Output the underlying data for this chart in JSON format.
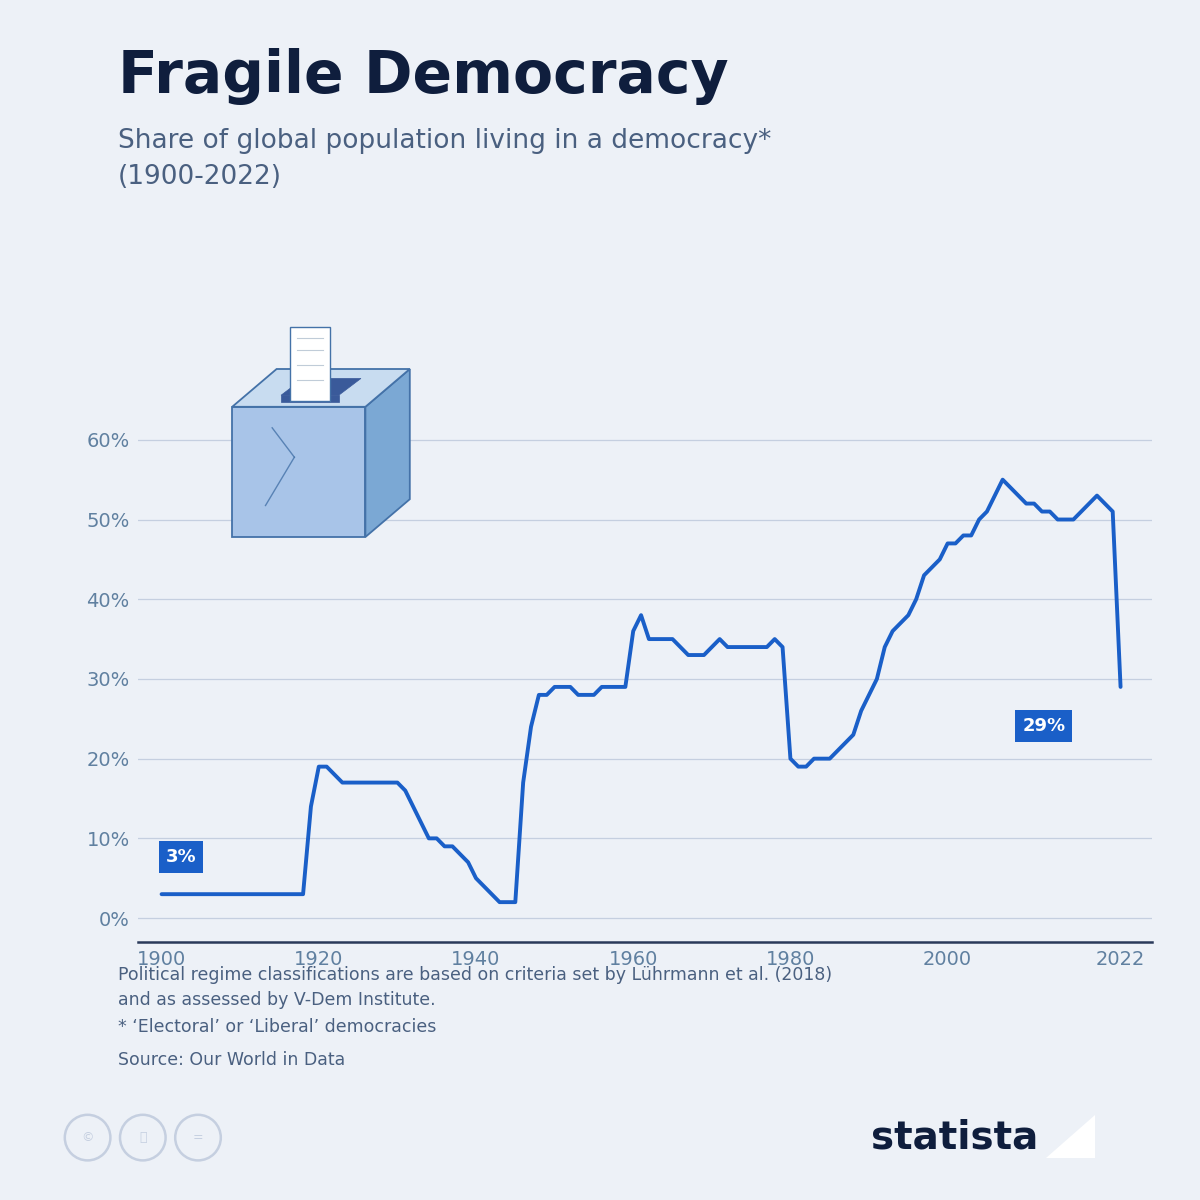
{
  "title": "Fragile Democracy",
  "subtitle_line1": "Share of global population living in a democracy*",
  "subtitle_line2": "(1900-2022)",
  "footnote1": "Political regime classifications are based on criteria set by Lührmann et al. (2018)",
  "footnote2": "and as assessed by V-Dem Institute.",
  "footnote3": "* ‘Electoral’ or ‘Liberal’ democracies",
  "footnote4": "Source: Our World in Data",
  "bg_color": "#edf1f7",
  "line_color": "#1a5fc8",
  "title_color": "#0f1e3d",
  "subtitle_color": "#4a6080",
  "footnote_color": "#4a6080",
  "accent_bar_color": "#1a5fc8",
  "label_bg_color": "#1a5fc8",
  "label_text_color": "#ffffff",
  "tick_color": "#6080a0",
  "grid_color": "#c5cfe0",
  "axis_color": "#2a3a5a",
  "yticks": [
    0,
    10,
    20,
    30,
    40,
    50,
    60
  ],
  "xticks": [
    1900,
    1920,
    1940,
    1960,
    1980,
    2000,
    2022
  ],
  "years": [
    1900,
    1901,
    1902,
    1903,
    1904,
    1905,
    1906,
    1907,
    1908,
    1909,
    1910,
    1911,
    1912,
    1913,
    1914,
    1915,
    1916,
    1917,
    1918,
    1919,
    1920,
    1921,
    1922,
    1923,
    1924,
    1925,
    1926,
    1927,
    1928,
    1929,
    1930,
    1931,
    1932,
    1933,
    1934,
    1935,
    1936,
    1937,
    1938,
    1939,
    1940,
    1941,
    1942,
    1943,
    1944,
    1945,
    1946,
    1947,
    1948,
    1949,
    1950,
    1951,
    1952,
    1953,
    1954,
    1955,
    1956,
    1957,
    1958,
    1959,
    1960,
    1961,
    1962,
    1963,
    1964,
    1965,
    1966,
    1967,
    1968,
    1969,
    1970,
    1971,
    1972,
    1973,
    1974,
    1975,
    1976,
    1977,
    1978,
    1979,
    1980,
    1981,
    1982,
    1983,
    1984,
    1985,
    1986,
    1987,
    1988,
    1989,
    1990,
    1991,
    1992,
    1993,
    1994,
    1995,
    1996,
    1997,
    1998,
    1999,
    2000,
    2001,
    2002,
    2003,
    2004,
    2005,
    2006,
    2007,
    2008,
    2009,
    2010,
    2011,
    2012,
    2013,
    2014,
    2015,
    2016,
    2017,
    2018,
    2019,
    2020,
    2021,
    2022
  ],
  "values": [
    3,
    3,
    3,
    3,
    3,
    3,
    3,
    3,
    3,
    3,
    3,
    3,
    3,
    3,
    3,
    3,
    3,
    3,
    3,
    14,
    19,
    19,
    18,
    17,
    17,
    17,
    17,
    17,
    17,
    17,
    17,
    16,
    14,
    12,
    10,
    10,
    9,
    9,
    8,
    7,
    5,
    4,
    3,
    2,
    2,
    2,
    17,
    24,
    28,
    28,
    29,
    29,
    29,
    28,
    28,
    28,
    29,
    29,
    29,
    29,
    36,
    38,
    35,
    35,
    35,
    35,
    34,
    33,
    33,
    33,
    34,
    35,
    34,
    34,
    34,
    34,
    34,
    34,
    35,
    34,
    20,
    19,
    19,
    20,
    20,
    20,
    21,
    22,
    23,
    26,
    28,
    30,
    34,
    36,
    37,
    38,
    40,
    43,
    44,
    45,
    47,
    47,
    48,
    48,
    50,
    51,
    53,
    55,
    54,
    53,
    52,
    52,
    51,
    51,
    50,
    50,
    50,
    51,
    52,
    53,
    52,
    51,
    29
  ]
}
